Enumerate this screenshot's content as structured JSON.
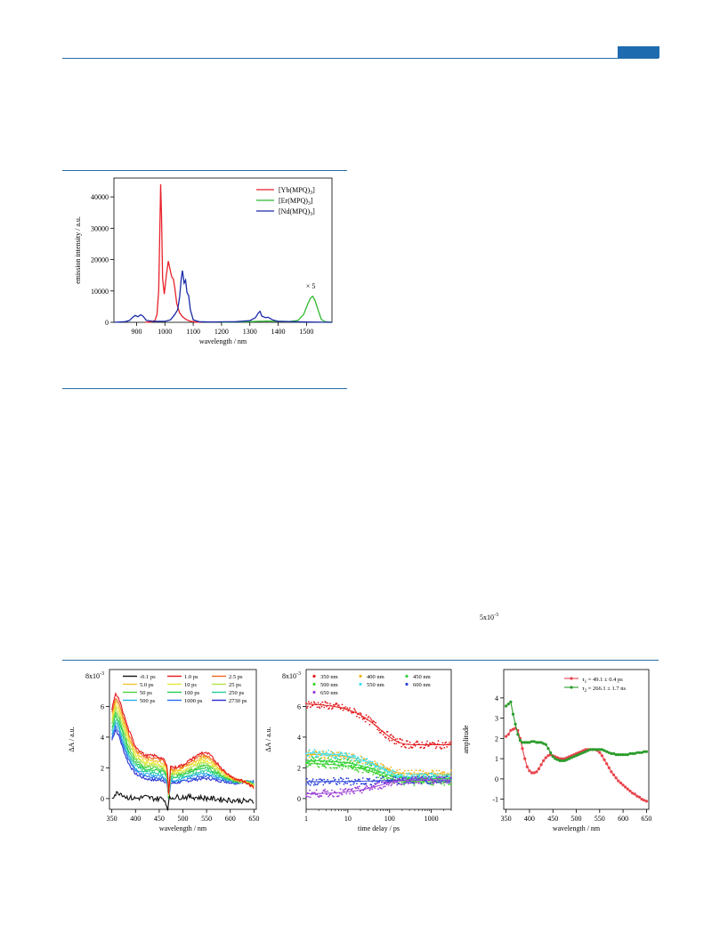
{
  "colors": {
    "accent": "#1e6bb0",
    "rule": "#2a6ea8"
  },
  "chart_data": [
    {
      "type": "line",
      "xlabel": "wavelength / nm",
      "ylabel": "emission intensity / a.u.",
      "xlim": [
        820,
        1590
      ],
      "ylim": [
        0,
        46000
      ],
      "xticks": [
        "900",
        "1000",
        "1100",
        "1200",
        "1300",
        "1400",
        "1500"
      ],
      "yticks": [
        "0",
        "10000",
        "20000",
        "30000",
        "40000"
      ],
      "annotation": "× 5",
      "legend_position": "top-right",
      "legend_main": [
        "[Yb(MPQ)",
        "[Er(MPQ)",
        "[Nd(MPQ)"
      ],
      "legend_sub": "3",
      "legend_close": "]",
      "series": [
        {
          "color": "#e8222a",
          "points": [
            [
              930,
              0
            ],
            [
              955,
              200
            ],
            [
              965,
              600
            ],
            [
              972,
              2500
            ],
            [
              978,
              10000
            ],
            [
              982,
              28000
            ],
            [
              985,
              44000
            ],
            [
              988,
              34000
            ],
            [
              992,
              14000
            ],
            [
              998,
              9000
            ],
            [
              1005,
              15000
            ],
            [
              1012,
              19500
            ],
            [
              1018,
              17000
            ],
            [
              1024,
              14500
            ],
            [
              1030,
              13800
            ],
            [
              1035,
              11000
            ],
            [
              1042,
              6000
            ],
            [
              1052,
              3000
            ],
            [
              1062,
              1800
            ],
            [
              1075,
              900
            ],
            [
              1090,
              300
            ],
            [
              1110,
              80
            ],
            [
              1130,
              0
            ]
          ]
        },
        {
          "color": "#2db82d",
          "points": [
            [
              1200,
              0
            ],
            [
              1250,
              150
            ],
            [
              1300,
              200
            ],
            [
              1330,
              300
            ],
            [
              1360,
              400
            ],
            [
              1400,
              300
            ],
            [
              1440,
              250
            ],
            [
              1470,
              600
            ],
            [
              1490,
              2500
            ],
            [
              1505,
              6000
            ],
            [
              1515,
              7800
            ],
            [
              1522,
              8300
            ],
            [
              1530,
              7000
            ],
            [
              1540,
              4200
            ],
            [
              1552,
              1000
            ],
            [
              1565,
              200
            ],
            [
              1590,
              0
            ]
          ]
        },
        {
          "color": "#1a2aa8",
          "points": [
            [
              820,
              0
            ],
            [
              860,
              200
            ],
            [
              875,
              600
            ],
            [
              885,
              1500
            ],
            [
              895,
              2200
            ],
            [
              905,
              1800
            ],
            [
              915,
              2400
            ],
            [
              922,
              2000
            ],
            [
              935,
              600
            ],
            [
              960,
              300
            ],
            [
              1000,
              300
            ],
            [
              1020,
              800
            ],
            [
              1035,
              2500
            ],
            [
              1045,
              4000
            ],
            [
              1052,
              8000
            ],
            [
              1058,
              14000
            ],
            [
              1062,
              16500
            ],
            [
              1068,
              12500
            ],
            [
              1073,
              13500
            ],
            [
              1078,
              9500
            ],
            [
              1084,
              8500
            ],
            [
              1090,
              4000
            ],
            [
              1100,
              800
            ],
            [
              1120,
              200
            ],
            [
              1160,
              100
            ],
            [
              1250,
              200
            ],
            [
              1300,
              500
            ],
            [
              1320,
              1500
            ],
            [
              1330,
              3000
            ],
            [
              1336,
              3500
            ],
            [
              1342,
              2000
            ],
            [
              1355,
              1500
            ],
            [
              1365,
              1600
            ],
            [
              1380,
              800
            ],
            [
              1400,
              300
            ],
            [
              1500,
              100
            ],
            [
              1590,
              0
            ]
          ]
        }
      ]
    },
    {
      "type": "line",
      "xlabel": "wavelength / nm",
      "ylabel": "ΔA / a.u.",
      "axis_exp_base": "8x10",
      "axis_exp": "-3",
      "xlim": [
        345,
        655
      ],
      "ylim": [
        -0.7,
        8.4
      ],
      "xticks": [
        "350",
        "400",
        "450",
        "500",
        "550",
        "600",
        "650"
      ],
      "yticks": [
        "0",
        "2",
        "4",
        "6"
      ],
      "legend": [
        "-0.1 ps",
        "1.0 ps",
        "2.5 ps",
        "5.0 ps",
        "10 ps",
        "25 ps",
        "50 ps",
        "100 ps",
        "250 ps",
        "500 ps",
        "1000 ps",
        "2730 ps"
      ],
      "legend_colors": [
        "#111111",
        "#e4161c",
        "#f2671f",
        "#f2c530",
        "#e9ea3a",
        "#b6e24a",
        "#4ad33a",
        "#27cc53",
        "#26ce9d",
        "#28b0e6",
        "#2a6be8",
        "#2a2fd2"
      ],
      "baseline": [
        [
          350,
          0.1
        ],
        [
          358,
          0.3
        ],
        [
          365,
          0.4
        ],
        [
          372,
          0.3
        ],
        [
          380,
          0.1
        ],
        [
          400,
          0
        ],
        [
          420,
          0.1
        ],
        [
          440,
          0
        ],
        [
          460,
          0
        ],
        [
          468,
          -0.6
        ],
        [
          472,
          0
        ],
        [
          480,
          0.1
        ],
        [
          520,
          0.1
        ],
        [
          560,
          0
        ],
        [
          600,
          -0.1
        ],
        [
          650,
          -0.2
        ]
      ],
      "first_curve": [
        [
          350,
          5.8
        ],
        [
          358,
          6.8
        ],
        [
          366,
          6.4
        ],
        [
          374,
          5.6
        ],
        [
          385,
          4.5
        ],
        [
          400,
          3.4
        ],
        [
          420,
          2.8
        ],
        [
          440,
          2.8
        ],
        [
          458,
          2.6
        ],
        [
          467,
          2.1
        ],
        [
          470,
          0.3
        ],
        [
          474,
          2.2
        ],
        [
          480,
          2.0
        ],
        [
          500,
          2.2
        ],
        [
          520,
          2.6
        ],
        [
          540,
          3.0
        ],
        [
          555,
          2.9
        ],
        [
          570,
          2.4
        ],
        [
          590,
          1.7
        ],
        [
          610,
          1.3
        ],
        [
          630,
          1.1
        ],
        [
          650,
          0.7
        ]
      ],
      "last_curve": [
        [
          350,
          3.8
        ],
        [
          358,
          4.5
        ],
        [
          366,
          4.0
        ],
        [
          374,
          3.2
        ],
        [
          385,
          2.3
        ],
        [
          400,
          1.6
        ],
        [
          420,
          1.3
        ],
        [
          440,
          1.2
        ],
        [
          458,
          1.2
        ],
        [
          467,
          1.0
        ],
        [
          470,
          -0.1
        ],
        [
          474,
          1.0
        ],
        [
          480,
          1.0
        ],
        [
          500,
          1.1
        ],
        [
          520,
          1.2
        ],
        [
          540,
          1.3
        ],
        [
          555,
          1.3
        ],
        [
          570,
          1.2
        ],
        [
          590,
          1.1
        ],
        [
          610,
          1.0
        ],
        [
          630,
          1.1
        ],
        [
          650,
          1.1
        ]
      ]
    },
    {
      "type": "scatter",
      "xlabel": "time delay / ps",
      "ylabel": "ΔA / a.u.",
      "axis_exp_base": "8x10",
      "axis_exp": "-3",
      "x_scale": "log",
      "xlim": [
        1,
        3000
      ],
      "ylim": [
        -0.7,
        8.4
      ],
      "xticks": [
        "1",
        "10",
        "100",
        "1000"
      ],
      "yticks": [
        "0",
        "2",
        "4",
        "6"
      ],
      "series": [
        {
          "name": "350 nm",
          "color": "#e41a1c",
          "start": 6.2,
          "end": 3.5
        },
        {
          "name": "400 nm",
          "color": "#f2b418",
          "start": 2.9,
          "end": 1.6
        },
        {
          "name": "450 nm",
          "color": "#2bd23a",
          "start": 2.5,
          "end": 1.3
        },
        {
          "name": "500 nm",
          "color": "#3fd22f",
          "start": 2.3,
          "end": 1.1
        },
        {
          "name": "550 nm",
          "color": "#40e0f0",
          "start": 3.0,
          "end": 1.4
        },
        {
          "name": "600 nm",
          "color": "#2a42d8",
          "start": 1.1,
          "end": 1.2
        },
        {
          "name": "650 nm",
          "color": "#9b3fd6",
          "start": 0.3,
          "end": 1.2
        }
      ]
    },
    {
      "type": "line",
      "xlabel": "wavelength / nm",
      "ylabel": "amplitude",
      "axis_exp_base": "5x10",
      "axis_exp": "-3",
      "xlim": [
        345,
        655
      ],
      "ylim": [
        -1.5,
        5.4
      ],
      "xticks": [
        "350",
        "400",
        "450",
        "500",
        "550",
        "600",
        "650"
      ],
      "yticks": [
        "-1",
        "0",
        "1",
        "2",
        "3",
        "4"
      ],
      "legend_position": "top-right",
      "series": [
        {
          "sym": "τ",
          "sub": "1",
          "text": " = 49.1 ± 0.4 ps",
          "color": "#e8424a",
          "x": [
            350,
            355,
            360,
            365,
            370,
            375,
            380,
            385,
            390,
            395,
            400,
            405,
            410,
            415,
            420,
            425,
            430,
            435,
            440,
            445,
            450,
            455,
            460,
            465,
            470,
            475,
            480,
            485,
            490,
            495,
            500,
            505,
            510,
            515,
            520,
            525,
            530,
            535,
            540,
            545,
            550,
            555,
            560,
            565,
            570,
            575,
            580,
            585,
            590,
            595,
            600,
            605,
            610,
            615,
            620,
            625,
            630,
            635,
            640,
            645,
            650
          ],
          "y": [
            2.1,
            2.2,
            2.4,
            2.45,
            2.5,
            2.4,
            2.0,
            1.5,
            1.0,
            0.6,
            0.4,
            0.3,
            0.3,
            0.35,
            0.5,
            0.7,
            0.9,
            1.05,
            1.15,
            1.2,
            1.15,
            1.1,
            1.05,
            1.0,
            1.0,
            1.0,
            1.05,
            1.1,
            1.15,
            1.2,
            1.25,
            1.3,
            1.35,
            1.4,
            1.45,
            1.45,
            1.45,
            1.45,
            1.45,
            1.4,
            1.3,
            1.15,
            0.95,
            0.75,
            0.55,
            0.35,
            0.2,
            0.05,
            -0.1,
            -0.2,
            -0.3,
            -0.4,
            -0.5,
            -0.6,
            -0.7,
            -0.75,
            -0.85,
            -0.9,
            -1.0,
            -1.05,
            -1.1
          ]
        },
        {
          "sym": "τ",
          "sub": "2",
          "text": " = 266.1 ± 1.7 ns",
          "color": "#2a9c2a",
          "x": [
            350,
            355,
            360,
            365,
            370,
            375,
            380,
            385,
            390,
            395,
            400,
            405,
            410,
            415,
            420,
            425,
            430,
            435,
            440,
            445,
            450,
            455,
            460,
            465,
            470,
            475,
            480,
            485,
            490,
            495,
            500,
            505,
            510,
            515,
            520,
            525,
            530,
            535,
            540,
            545,
            550,
            555,
            560,
            565,
            570,
            575,
            580,
            585,
            590,
            595,
            600,
            605,
            610,
            615,
            620,
            625,
            630,
            635,
            640,
            645,
            650
          ],
          "y": [
            3.6,
            3.7,
            3.8,
            3.2,
            2.7,
            2.2,
            1.9,
            1.8,
            1.8,
            1.8,
            1.8,
            1.85,
            1.85,
            1.8,
            1.8,
            1.8,
            1.75,
            1.7,
            1.5,
            1.3,
            1.1,
            1.0,
            0.95,
            0.9,
            0.9,
            0.9,
            0.95,
            1.0,
            1.05,
            1.1,
            1.15,
            1.2,
            1.25,
            1.3,
            1.35,
            1.4,
            1.45,
            1.45,
            1.45,
            1.45,
            1.45,
            1.45,
            1.4,
            1.35,
            1.3,
            1.25,
            1.25,
            1.2,
            1.2,
            1.2,
            1.2,
            1.2,
            1.2,
            1.25,
            1.25,
            1.25,
            1.3,
            1.3,
            1.3,
            1.35,
            1.35
          ]
        }
      ]
    }
  ]
}
